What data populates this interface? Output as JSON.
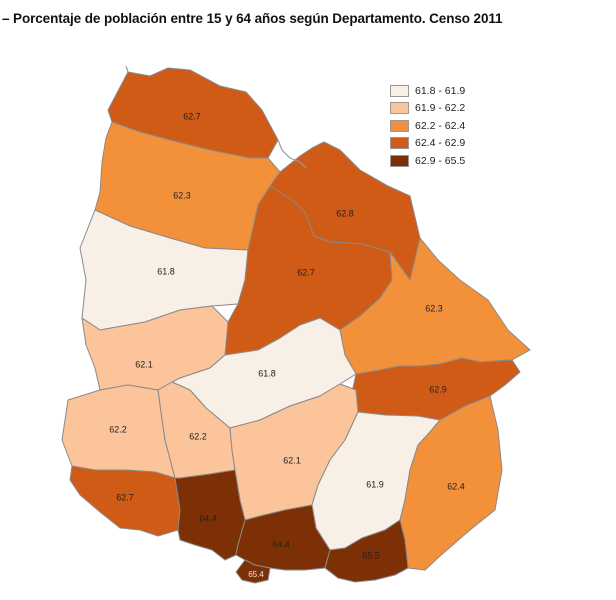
{
  "title": "– Porcentaje de población entre 15 y 64 años según Departamento. Censo 2011",
  "legend": [
    {
      "label": "61.8 - 61.9",
      "color": "#f8efe6"
    },
    {
      "label": "61.9 - 62.2",
      "color": "#fbc49a"
    },
    {
      "label": "62.2 - 62.4",
      "color": "#f3913b"
    },
    {
      "label": "62.4 - 62.9",
      "color": "#cf5b16"
    },
    {
      "label": "62.9 - 65.5",
      "color": "#7d3006"
    }
  ],
  "departments": [
    {
      "value": "62.7",
      "color": "#cf5b16"
    },
    {
      "value": "62.3",
      "color": "#f3913b"
    },
    {
      "value": "62.8",
      "color": "#cf5b16"
    },
    {
      "value": "61.8",
      "color": "#f8efe6"
    },
    {
      "value": "62.7",
      "color": "#cf5b16"
    },
    {
      "value": "62.3",
      "color": "#f3913b"
    },
    {
      "value": "62.1",
      "color": "#fbc49a"
    },
    {
      "value": "61.8",
      "color": "#f8efe6"
    },
    {
      "value": "62.9",
      "color": "#cf5b16"
    },
    {
      "value": "62.2",
      "color": "#fbc49a"
    },
    {
      "value": "62.2",
      "color": "#fbc49a"
    },
    {
      "value": "62.1",
      "color": "#fbc49a"
    },
    {
      "value": "61.9",
      "color": "#f8efe6"
    },
    {
      "value": "62.4",
      "color": "#f3913b"
    },
    {
      "value": "62.7",
      "color": "#cf5b16"
    },
    {
      "value": "64.4",
      "color": "#7d3006"
    },
    {
      "value": "64.4",
      "color": "#7d3006"
    },
    {
      "value": "65.5",
      "color": "#7d3006"
    },
    {
      "value": "65.4",
      "color": "#7d3006"
    }
  ]
}
